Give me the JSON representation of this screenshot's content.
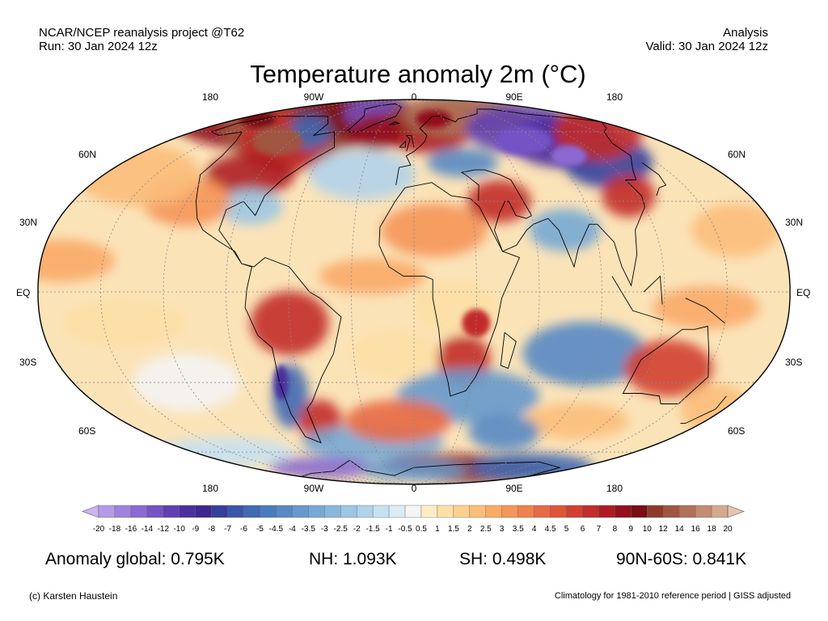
{
  "header": {
    "source": "NCAR/NCEP reanalysis project @T62",
    "run": "Run: 30 Jan 2024 12z",
    "kind": "Analysis",
    "valid": "Valid: 30 Jan 2024 12z"
  },
  "title": "Temperature anomaly 2m (°C)",
  "map": {
    "projection": "robinson",
    "central_longitude": 0,
    "lon_labels": [
      "180",
      "90W",
      "0",
      "90E",
      "180"
    ],
    "lat_labels": [
      "60N",
      "30N",
      "EQ",
      "30S",
      "60S"
    ],
    "field": "2m temperature anomaly"
  },
  "colorbar": {
    "labels": [
      "-20",
      "-18",
      "-16",
      "-14",
      "-12",
      "-10",
      "-9",
      "-8",
      "-7",
      "-6",
      "-5",
      "-4.5",
      "-4",
      "-3.5",
      "-3",
      "-2.5",
      "-2",
      "-1.5",
      "-1",
      "-0.5",
      "0.5",
      "1",
      "1.5",
      "2",
      "2.5",
      "3",
      "3.5",
      "4",
      "4.5",
      "5",
      "6",
      "7",
      "8",
      "9",
      "10",
      "12",
      "14",
      "16",
      "18",
      "20"
    ],
    "colors": [
      "#c8b4f0",
      "#b49be6",
      "#9f82dc",
      "#8a6ad2",
      "#7553c4",
      "#6040b0",
      "#4c2e9c",
      "#3c2890",
      "#34409c",
      "#3a56aa",
      "#4169b4",
      "#4a7bbd",
      "#5889c4",
      "#6799cc",
      "#77a8d4",
      "#88b7dc",
      "#9cc6e3",
      "#b1d3ea",
      "#c6e1f1",
      "#dcecf6",
      "#f4f4f4",
      "#fdedc4",
      "#fde0a6",
      "#fcd08e",
      "#fbbe7a",
      "#f9aa68",
      "#f5955a",
      "#f0804e",
      "#e86a44",
      "#df553a",
      "#d24032",
      "#c22c2a",
      "#ad1c24",
      "#93101c",
      "#7a0c14",
      "#8e3a28",
      "#a05540",
      "#b27058",
      "#c48c72",
      "#d6a890",
      "#e8c4ae"
    ]
  },
  "stats": {
    "global": "Anomaly global: 0.795K",
    "nh": "NH: 1.093K",
    "sh": "SH: 0.498K",
    "arctic": "90N-60S: 0.841K"
  },
  "footer": {
    "credit": "(c) Karsten Haustein",
    "note": "Climatology for 1981-2010 reference period | GISS adjusted"
  }
}
